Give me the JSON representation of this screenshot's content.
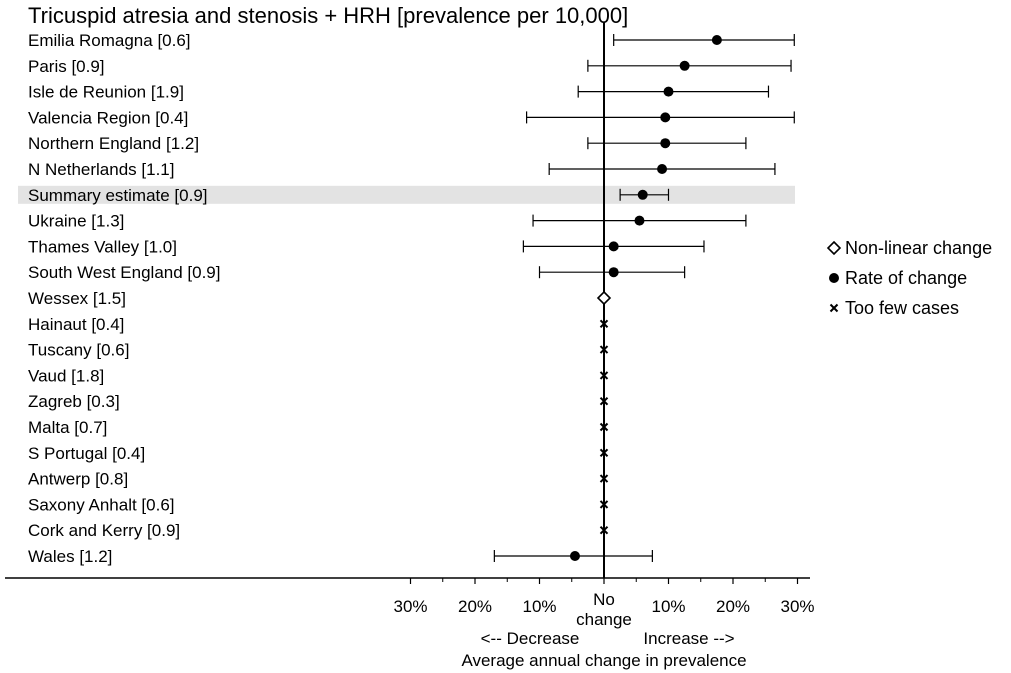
{
  "chart_data": {
    "type": "forest",
    "title": "Tricuspid atresia and stenosis + HRH [prevalence per 10,000]",
    "xlabel": "Average annual change in prevalence",
    "x_direction_labels": {
      "decrease": "<-- Decrease",
      "increase": "Increase -->"
    },
    "center_label": [
      "No",
      "change"
    ],
    "xlim": [
      -33,
      33
    ],
    "xticks": [
      {
        "value": -30,
        "label": "30%"
      },
      {
        "value": -20,
        "label": "20%"
      },
      {
        "value": -10,
        "label": "10%"
      },
      {
        "value": 0,
        "label": "No"
      },
      {
        "value": 10,
        "label": "10%"
      },
      {
        "value": 20,
        "label": "20%"
      },
      {
        "value": 30,
        "label": "30%"
      }
    ],
    "legend": [
      {
        "marker": "diamond",
        "label": "Non-linear change"
      },
      {
        "marker": "dot",
        "label": "Rate of change"
      },
      {
        "marker": "cross",
        "label": "Too few cases"
      }
    ],
    "rows": [
      {
        "label": "Emilia Romagna [0.6]",
        "estimate": 17.5,
        "lower": 1.5,
        "upper": 29.5,
        "marker": "dot"
      },
      {
        "label": "Paris [0.9]",
        "estimate": 12.5,
        "lower": -2.5,
        "upper": 29.0,
        "marker": "dot"
      },
      {
        "label": "Isle de Reunion [1.9]",
        "estimate": 10.0,
        "lower": -4.0,
        "upper": 25.5,
        "marker": "dot"
      },
      {
        "label": "Valencia Region [0.4]",
        "estimate": 9.5,
        "lower": -12.0,
        "upper": 29.5,
        "marker": "dot"
      },
      {
        "label": "Northern England [1.2]",
        "estimate": 9.5,
        "lower": -2.5,
        "upper": 22.0,
        "marker": "dot"
      },
      {
        "label": "N Netherlands [1.1]",
        "estimate": 9.0,
        "lower": -8.5,
        "upper": 26.5,
        "marker": "dot"
      },
      {
        "label": "Summary estimate [0.9]",
        "estimate": 6.0,
        "lower": 2.5,
        "upper": 10.0,
        "marker": "dot",
        "highlight": true
      },
      {
        "label": "Ukraine [1.3]",
        "estimate": 5.5,
        "lower": -11.0,
        "upper": 22.0,
        "marker": "dot"
      },
      {
        "label": "Thames Valley [1.0]",
        "estimate": 1.5,
        "lower": -12.5,
        "upper": 15.5,
        "marker": "dot"
      },
      {
        "label": "South West England [0.9]",
        "estimate": 1.5,
        "lower": -10.0,
        "upper": 12.5,
        "marker": "dot"
      },
      {
        "label": "Wessex [1.5]",
        "estimate": 0,
        "marker": "diamond"
      },
      {
        "label": "Hainaut [0.4]",
        "estimate": 0,
        "marker": "cross"
      },
      {
        "label": "Tuscany [0.6]",
        "estimate": 0,
        "marker": "cross"
      },
      {
        "label": "Vaud [1.8]",
        "estimate": 0,
        "marker": "cross"
      },
      {
        "label": "Zagreb [0.3]",
        "estimate": 0,
        "marker": "cross"
      },
      {
        "label": "Malta [0.7]",
        "estimate": 0,
        "marker": "cross"
      },
      {
        "label": "S Portugal [0.4]",
        "estimate": 0,
        "marker": "cross"
      },
      {
        "label": "Antwerp [0.8]",
        "estimate": 0,
        "marker": "cross"
      },
      {
        "label": "Saxony Anhalt [0.6]",
        "estimate": 0,
        "marker": "cross"
      },
      {
        "label": "Cork and Kerry [0.9]",
        "estimate": 0,
        "marker": "cross"
      },
      {
        "label": "Wales [1.2]",
        "estimate": -4.5,
        "lower": -17.0,
        "upper": 7.5,
        "marker": "dot"
      }
    ],
    "colors": {
      "marker": "#000000",
      "highlight_band": "#e3e3e3",
      "axis": "#000000"
    }
  }
}
